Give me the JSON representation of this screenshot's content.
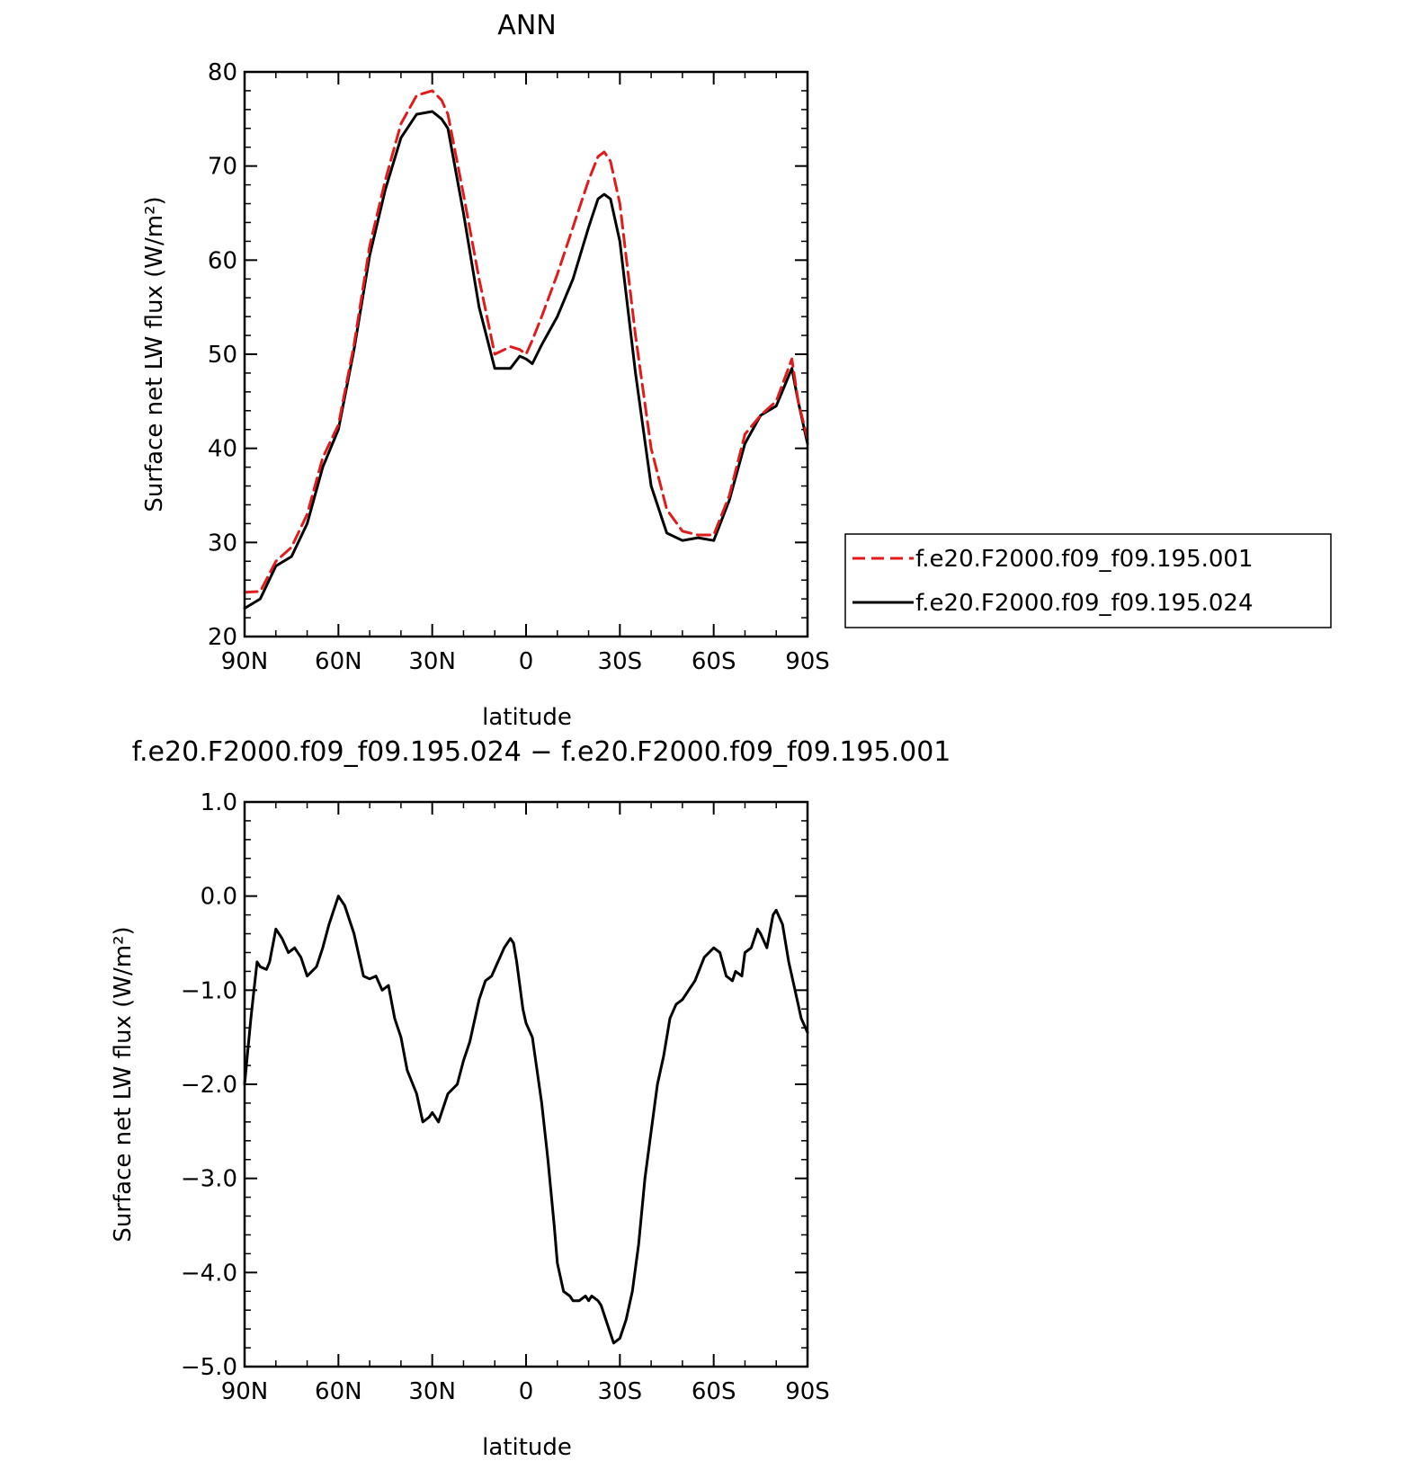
{
  "chart_data": [
    {
      "type": "line",
      "title": "ANN",
      "xlabel": "latitude",
      "ylabel": "Surface net LW flux (W/m²)",
      "xlim": [
        90,
        -90
      ],
      "ylim": [
        20,
        80
      ],
      "yticks": [
        "20",
        "30",
        "40",
        "50",
        "60",
        "70",
        "80"
      ],
      "xticks": [
        "90N",
        "60N",
        "30N",
        "0",
        "30S",
        "60S",
        "90S"
      ],
      "legend": "right",
      "grid": false,
      "x": [
        90,
        85,
        80,
        75,
        70,
        65,
        60,
        55,
        50,
        45,
        40,
        35,
        30,
        27,
        25,
        20,
        15,
        10,
        5,
        2,
        0,
        -2,
        -5,
        -10,
        -15,
        -20,
        -23,
        -25,
        -27,
        -30,
        -35,
        -40,
        -45,
        -50,
        -55,
        -60,
        -65,
        -70,
        -75,
        -80,
        -85,
        -87,
        -90
      ],
      "series": [
        {
          "name": "f.e20.F2000.f09_f09.195.001",
          "color": "#e31a1c",
          "dash": true,
          "values": [
            24.7,
            24.8,
            28.0,
            29.5,
            33.0,
            39.0,
            42.5,
            51.0,
            61.5,
            68.5,
            74.5,
            77.5,
            78.0,
            77.0,
            75.5,
            67.0,
            58.0,
            50.0,
            50.8,
            50.5,
            50.0,
            51.5,
            54.0,
            58.5,
            63.5,
            68.5,
            71.0,
            71.5,
            70.5,
            66.0,
            52.0,
            40.0,
            33.5,
            31.2,
            30.8,
            30.8,
            35.0,
            41.5,
            43.5,
            45.0,
            49.5,
            45.0,
            41.0
          ]
        },
        {
          "name": "f.e20.F2000.f09_f09.195.024",
          "color": "#000000",
          "dash": false,
          "values": [
            23.0,
            24.0,
            27.5,
            28.5,
            32.0,
            38.0,
            42.0,
            50.5,
            60.5,
            67.5,
            73.0,
            75.5,
            75.8,
            75.0,
            74.0,
            65.0,
            55.0,
            48.5,
            48.5,
            49.8,
            49.5,
            49.0,
            51.0,
            54.0,
            58.0,
            63.5,
            66.5,
            67.0,
            66.5,
            62.0,
            48.0,
            36.0,
            31.0,
            30.2,
            30.5,
            30.2,
            34.5,
            40.5,
            43.5,
            44.5,
            48.5,
            45.0,
            40.5
          ]
        }
      ]
    },
    {
      "type": "line",
      "title": "f.e20.F2000.f09_f09.195.024 − f.e20.F2000.f09_f09.195.001",
      "xlabel": "latitude",
      "ylabel": "Surface net LW flux (W/m²)",
      "xlim": [
        90,
        -90
      ],
      "ylim": [
        -5,
        1
      ],
      "yticks": [
        "−5.0",
        "−4.0",
        "−3.0",
        "−2.0",
        "−1.0",
        "0.0",
        "1.0"
      ],
      "xticks": [
        "90N",
        "60N",
        "30N",
        "0",
        "30S",
        "60S",
        "90S"
      ],
      "grid": false,
      "x": [
        90,
        88,
        87,
        86,
        85,
        83,
        82,
        80,
        78,
        76,
        74,
        72,
        70,
        67,
        65,
        63,
        60,
        58,
        55,
        52,
        50,
        48,
        46,
        44,
        42,
        40,
        38,
        35,
        33,
        31,
        30,
        29,
        28,
        27,
        25,
        22,
        20,
        18,
        15,
        13,
        11,
        9,
        7,
        5,
        4,
        3,
        1,
        0,
        -2,
        -5,
        -7,
        -9,
        -10,
        -12,
        -14,
        -15,
        -17,
        -19,
        -20,
        -21,
        -23,
        -24,
        -26,
        -28,
        -30,
        -31,
        -32,
        -34,
        -36,
        -38,
        -40,
        -42,
        -44,
        -46,
        -48,
        -50,
        -52,
        -54,
        -57,
        -60,
        -62,
        -64,
        -66,
        -67,
        -69,
        -70,
        -72,
        -74,
        -75,
        -77,
        -79,
        -80,
        -82,
        -84,
        -86,
        -88,
        -90
      ],
      "series": [
        {
          "name": "",
          "color": "#000000",
          "dash": false,
          "values": [
            -2.0,
            -1.3,
            -1.0,
            -0.7,
            -0.75,
            -0.78,
            -0.7,
            -0.35,
            -0.45,
            -0.6,
            -0.55,
            -0.65,
            -0.85,
            -0.75,
            -0.55,
            -0.3,
            0.0,
            -0.1,
            -0.4,
            -0.85,
            -0.88,
            -0.85,
            -1.0,
            -0.95,
            -1.3,
            -1.5,
            -1.85,
            -2.1,
            -2.4,
            -2.35,
            -2.3,
            -2.35,
            -2.4,
            -2.3,
            -2.1,
            -2.0,
            -1.75,
            -1.55,
            -1.1,
            -0.9,
            -0.85,
            -0.7,
            -0.55,
            -0.45,
            -0.5,
            -0.7,
            -1.2,
            -1.35,
            -1.5,
            -2.2,
            -2.8,
            -3.5,
            -3.9,
            -4.2,
            -4.25,
            -4.3,
            -4.3,
            -4.25,
            -4.3,
            -4.25,
            -4.3,
            -4.35,
            -4.55,
            -4.75,
            -4.7,
            -4.6,
            -4.5,
            -4.2,
            -3.7,
            -3.0,
            -2.5,
            -2.0,
            -1.7,
            -1.3,
            -1.15,
            -1.1,
            -1.0,
            -0.9,
            -0.65,
            -0.55,
            -0.6,
            -0.85,
            -0.9,
            -0.8,
            -0.85,
            -0.6,
            -0.55,
            -0.35,
            -0.4,
            -0.55,
            -0.2,
            -0.15,
            -0.3,
            -0.7,
            -1.0,
            -1.3,
            -1.45
          ]
        }
      ]
    }
  ]
}
